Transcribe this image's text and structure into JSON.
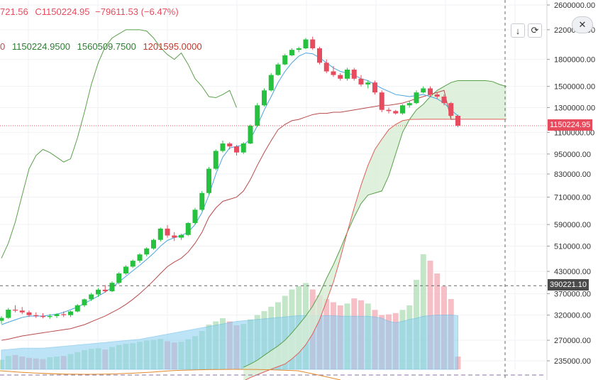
{
  "legend": {
    "ohlc_prefix": "721.56",
    "close_label": "C",
    "close_value": "1150224.95",
    "change": "−79611.53 (−6.47%)",
    "ind_first": "0",
    "ind_values": [
      "1150224.9500",
      "1560509.7500",
      "1201595.0000"
    ]
  },
  "toolbar": {
    "down_icon": "↓",
    "refresh_icon": "⟳",
    "close_icon": "✕"
  },
  "price_tags": {
    "last_price": "1150224.95",
    "crosshair_price": "390221.10"
  },
  "colors": {
    "up": "#26c13f",
    "down": "#e74c5e",
    "tenkan": "#4aa3df",
    "kijun": "#b84a4a",
    "span_a": "#5aa04a",
    "span_b": "#e0605a",
    "lagging": "#5aa04a",
    "cloud": "#d7ecd4",
    "volume_ma": "#87cff0",
    "volume_up": "#bde3c3",
    "volume_down": "#f5b8c0",
    "volume_purple": "#b6a8d6"
  },
  "chart_data": {
    "type": "candlestick",
    "y_axis": {
      "scale": "log",
      "ticks": [
        2600000,
        2200000,
        1800000,
        1500000,
        1300000,
        1100000,
        950000,
        830000,
        710000,
        590000,
        510000,
        430000,
        370000,
        320000,
        270000,
        235000
      ],
      "tick_labels": [
        "2600000.00",
        "2200000.00",
        "1800000.00",
        "1500000.00",
        "1300000.00",
        "1100000.00",
        "950000.00",
        "830000.00",
        "710000.00",
        "590000.00",
        "510000.00",
        "430000.00",
        "370000.00",
        "320000.00",
        "270000.00",
        "235000.00"
      ]
    },
    "candles": [
      [
        308000,
        318000,
        302000,
        314000
      ],
      [
        314000,
        336000,
        312000,
        332000
      ],
      [
        332000,
        342000,
        326000,
        330000
      ],
      [
        330000,
        338000,
        322000,
        326000
      ],
      [
        326000,
        330000,
        316000,
        320000
      ],
      [
        320000,
        326000,
        314000,
        318000
      ],
      [
        318000,
        324000,
        313000,
        316000
      ],
      [
        316000,
        322000,
        312000,
        318000
      ],
      [
        318000,
        324000,
        314000,
        322000
      ],
      [
        322000,
        328000,
        316000,
        320000
      ],
      [
        320000,
        330000,
        316000,
        328000
      ],
      [
        328000,
        345000,
        326000,
        342000
      ],
      [
        342000,
        358000,
        338000,
        356000
      ],
      [
        356000,
        372000,
        352000,
        368000
      ],
      [
        368000,
        384000,
        362000,
        380000
      ],
      [
        380000,
        392000,
        372000,
        376000
      ],
      [
        376000,
        402000,
        374000,
        398000
      ],
      [
        398000,
        428000,
        394000,
        424000
      ],
      [
        424000,
        448000,
        420000,
        444000
      ],
      [
        444000,
        466000,
        440000,
        462000
      ],
      [
        462000,
        486000,
        456000,
        482000
      ],
      [
        482000,
        506000,
        476000,
        502000
      ],
      [
        502000,
        536000,
        498000,
        532000
      ],
      [
        532000,
        578000,
        526000,
        574000
      ],
      [
        574000,
        588000,
        540000,
        548000
      ],
      [
        548000,
        560000,
        528000,
        540000
      ],
      [
        540000,
        554000,
        532000,
        550000
      ],
      [
        550000,
        600000,
        546000,
        596000
      ],
      [
        596000,
        660000,
        590000,
        652000
      ],
      [
        652000,
        740000,
        646000,
        730000
      ],
      [
        730000,
        870000,
        724000,
        860000
      ],
      [
        860000,
        980000,
        852000,
        970000
      ],
      [
        970000,
        1040000,
        960000,
        1020000
      ],
      [
        1020000,
        1030000,
        980000,
        1000000
      ],
      [
        1000000,
        1010000,
        940000,
        960000
      ],
      [
        960000,
        1030000,
        950000,
        1020000
      ],
      [
        1020000,
        1160000,
        1015000,
        1150000
      ],
      [
        1150000,
        1340000,
        1140000,
        1320000
      ],
      [
        1320000,
        1480000,
        1310000,
        1460000
      ],
      [
        1460000,
        1640000,
        1450000,
        1620000
      ],
      [
        1620000,
        1760000,
        1610000,
        1740000
      ],
      [
        1740000,
        1870000,
        1730000,
        1850000
      ],
      [
        1850000,
        1940000,
        1840000,
        1920000
      ],
      [
        1920000,
        1960000,
        1890000,
        1940000
      ],
      [
        1940000,
        2080000,
        1930000,
        2060000
      ],
      [
        2060000,
        2100000,
        1920000,
        1940000
      ],
      [
        1940000,
        1960000,
        1740000,
        1760000
      ],
      [
        1760000,
        1800000,
        1640000,
        1660000
      ],
      [
        1660000,
        1720000,
        1600000,
        1620000
      ],
      [
        1620000,
        1640000,
        1560000,
        1580000
      ],
      [
        1580000,
        1700000,
        1560000,
        1680000
      ],
      [
        1680000,
        1700000,
        1560000,
        1580000
      ],
      [
        1580000,
        1620000,
        1500000,
        1520000
      ],
      [
        1520000,
        1560000,
        1480000,
        1540000
      ],
      [
        1540000,
        1560000,
        1420000,
        1440000
      ],
      [
        1440000,
        1460000,
        1260000,
        1280000
      ],
      [
        1280000,
        1300000,
        1250000,
        1270000
      ],
      [
        1270000,
        1280000,
        1240000,
        1250000
      ],
      [
        1250000,
        1330000,
        1240000,
        1320000
      ],
      [
        1320000,
        1360000,
        1300000,
        1340000
      ],
      [
        1340000,
        1460000,
        1330000,
        1440000
      ],
      [
        1440000,
        1500000,
        1430000,
        1480000
      ],
      [
        1480000,
        1500000,
        1400000,
        1420000
      ],
      [
        1420000,
        1440000,
        1380000,
        1400000
      ],
      [
        1400000,
        1420000,
        1320000,
        1340000
      ],
      [
        1340000,
        1350000,
        1200000,
        1230000
      ],
      [
        1230000,
        1240000,
        1140000,
        1150224
      ]
    ],
    "indicators": {
      "tenkan": [
        300000,
        305000,
        310000,
        315000,
        318000,
        318000,
        318000,
        320000,
        322000,
        326000,
        332000,
        338000,
        346000,
        355000,
        364000,
        374000,
        386000,
        400000,
        416000,
        432000,
        448000,
        466000,
        486000,
        510000,
        530000,
        540000,
        548000,
        560000,
        590000,
        640000,
        720000,
        830000,
        930000,
        990000,
        1000000,
        1010000,
        1050000,
        1150000,
        1280000,
        1400000,
        1540000,
        1660000,
        1760000,
        1840000,
        1880000,
        1870000,
        1820000,
        1760000,
        1700000,
        1660000,
        1640000,
        1620000,
        1580000,
        1560000,
        1520000,
        1480000,
        1450000,
        1420000,
        1410000,
        1400000,
        1410000,
        1420000,
        1400000,
        1380000,
        1340000,
        1280000,
        1230000
      ],
      "kijun": [
        270000,
        272000,
        275000,
        278000,
        280000,
        282000,
        284000,
        286000,
        288000,
        290000,
        292000,
        296000,
        300000,
        306000,
        312000,
        318000,
        326000,
        334000,
        344000,
        356000,
        370000,
        386000,
        404000,
        424000,
        444000,
        458000,
        470000,
        490000,
        520000,
        560000,
        620000,
        660000,
        690000,
        700000,
        710000,
        740000,
        800000,
        880000,
        960000,
        1040000,
        1120000,
        1160000,
        1190000,
        1200000,
        1220000,
        1240000,
        1250000,
        1250000,
        1260000,
        1260000,
        1270000,
        1280000,
        1290000,
        1300000,
        1310000,
        1320000,
        1320000,
        1330000,
        1340000,
        1360000,
        1380000,
        1400000,
        1420000,
        1440000,
        1460000,
        1200000,
        1201595
      ],
      "lagging": [
        470000,
        520000,
        600000,
        720000,
        860000,
        940000,
        980000,
        960000,
        930000,
        900000,
        920000,
        1060000,
        1260000,
        1520000,
        1760000,
        1960000,
        2080000,
        2140000,
        2200000,
        2200000,
        2200000,
        2180000,
        2080000,
        1950000,
        1860000,
        1800000,
        1880000,
        1740000,
        1580000,
        1500000,
        1400000,
        1390000,
        1420000,
        1460000,
        1300000
      ],
      "span_a": [
        225000,
        230000,
        236000,
        244000,
        252000,
        260000,
        270000,
        284000,
        300000,
        318000,
        340000,
        370000,
        410000,
        450000,
        500000,
        560000,
        620000,
        680000,
        720000,
        730000,
        740000,
        820000,
        950000,
        1100000,
        1200000,
        1280000,
        1330000,
        1400000,
        1460000,
        1500000,
        1540000,
        1560000,
        1560000,
        1560000,
        1560000,
        1560000,
        1550000,
        1520000,
        1500000
      ],
      "span_b": [
        205000,
        210000,
        214000,
        218000,
        222000,
        226000,
        230000,
        238000,
        248000,
        262000,
        282000,
        310000,
        352000,
        400000,
        470000,
        560000,
        660000,
        770000,
        880000,
        980000,
        1050000,
        1120000,
        1160000,
        1190000,
        1200000,
        1201000,
        1201595,
        1201595,
        1201595,
        1201595,
        1201595,
        1201595,
        1201595,
        1201595,
        1201595,
        1201595,
        1201595,
        1201595,
        1201595
      ]
    },
    "volume": [
      30,
      42,
      45,
      40,
      36,
      34,
      32,
      38,
      40,
      42,
      48,
      54,
      60,
      64,
      66,
      62,
      70,
      76,
      80,
      82,
      86,
      90,
      92,
      95,
      88,
      84,
      86,
      94,
      104,
      120,
      140,
      150,
      160,
      150,
      138,
      142,
      156,
      170,
      182,
      196,
      210,
      230,
      250,
      260,
      270,
      250,
      232,
      220,
      210,
      200,
      206,
      222,
      216,
      206,
      186,
      170,
      172,
      176,
      186,
      200,
      280,
      360,
      340,
      300,
      260,
      220,
      40
    ],
    "volume_ma": [
      60,
      62,
      64,
      66,
      66,
      66,
      66,
      68,
      70,
      72,
      74,
      76,
      78,
      80,
      82,
      84,
      86,
      88,
      90,
      92,
      94,
      98,
      102,
      106,
      110,
      114,
      118,
      122,
      126,
      130,
      134,
      138,
      142,
      146,
      150,
      152,
      154,
      156,
      158,
      160,
      162,
      164,
      166,
      168,
      168,
      168,
      168,
      168,
      168,
      166,
      166,
      166,
      166,
      166,
      164,
      160,
      150,
      146,
      150,
      156,
      160,
      166,
      168,
      170,
      170,
      170,
      168
    ]
  }
}
